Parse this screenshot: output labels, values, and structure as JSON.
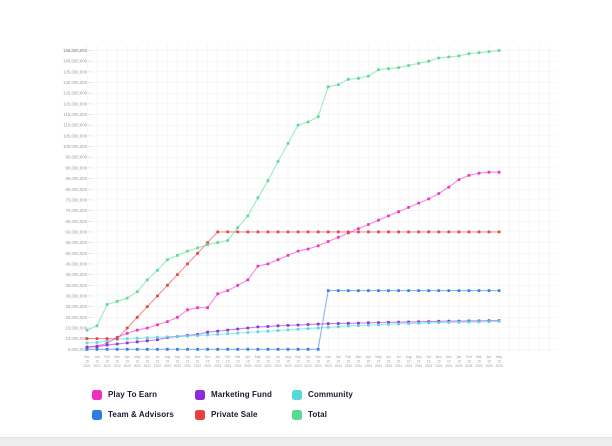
{
  "chart_data": {
    "type": "line",
    "title": "",
    "grid": true,
    "legend_position": "bottom",
    "x_axis": {
      "unit": "month",
      "labels": [
        "Dec 15 2021",
        "Jan 15 2022",
        "Feb 15 2022",
        "Mar 15 2022",
        "Apr 15 2022",
        "May 15 2022",
        "Jun 15 2022",
        "Jul 15 2022",
        "Aug 15 2022",
        "Sep 15 2022",
        "Oct 15 2022",
        "Nov 15 2022",
        "Dec 15 2022",
        "Jan 15 2023",
        "Feb 15 2023",
        "Mar 15 2023",
        "Apr 15 2023",
        "May 15 2023",
        "Jun 15 2023",
        "Jul 15 2023",
        "Aug 15 2023",
        "Sep 15 2023",
        "Oct 15 2023",
        "Nov 15 2023",
        "Dec 15 2023",
        "Jan 15 2024",
        "Feb 15 2024",
        "Mar 15 2024",
        "Apr 15 2024",
        "May 15 2024",
        "Jun 15 2024",
        "Jul 15 2024",
        "Aug 15 2024",
        "Sep 15 2024",
        "Oct 15 2024",
        "Nov 15 2024",
        "Dec 15 2024",
        "Jan 15 2025",
        "Feb 15 2025",
        "Mar 15 2025",
        "Apr 15 2025",
        "May 15 2025"
      ]
    },
    "y_axis": {
      "tick_min": 5000000,
      "tick_max": 145000000,
      "tick_step": 5000000,
      "range": [
        0,
        145000000
      ]
    },
    "series": [
      {
        "name": "Play To Earn",
        "color": "#F02EC0",
        "values": [
          6000000,
          6500000,
          7800000,
          10600000,
          12500000,
          14000000,
          15000000,
          16500000,
          18000000,
          20000000,
          23500000,
          24500000,
          24500000,
          31000000,
          32500000,
          35000000,
          37500000,
          44000000,
          45000000,
          47000000,
          49000000,
          51000000,
          52000000,
          53500000,
          55500000,
          57500000,
          59500000,
          61500000,
          63500000,
          65500000,
          67500000,
          69500000,
          71500000,
          73500000,
          75500000,
          78000000,
          81000000,
          84500000,
          86500000,
          87500000,
          88000000,
          88000000
        ]
      },
      {
        "name": "Marketing Fund",
        "color": "#8C2BD9",
        "values": [
          6000000,
          6200000,
          7000000,
          7500000,
          8000000,
          8500000,
          9000000,
          9500000,
          10500000,
          11000000,
          11500000,
          12000000,
          13000000,
          13500000,
          14000000,
          14500000,
          15000000,
          15500000,
          15700000,
          16000000,
          16200000,
          16400000,
          16600000,
          16800000,
          17000000,
          17100000,
          17200000,
          17300000,
          17400000,
          17500000,
          17600000,
          17700000,
          17800000,
          17900000,
          18000000,
          18100000,
          18200000,
          18200000,
          18300000,
          18300000,
          18400000,
          18400000
        ]
      },
      {
        "name": "Community",
        "color": "#57D7DC",
        "values": [
          8000000,
          8200000,
          9000000,
          9700000,
          10000000,
          10200000,
          10400000,
          10600000,
          10800000,
          11000000,
          11200000,
          11400000,
          11700000,
          12000000,
          12300000,
          12600000,
          12900000,
          13200000,
          13500000,
          13800000,
          14100000,
          14400000,
          14700000,
          15000000,
          15300000,
          15600000,
          15900000,
          16100000,
          16300000,
          16500000,
          16700000,
          16900000,
          17100000,
          17200000,
          17400000,
          17500000,
          17600000,
          17700000,
          17800000,
          17900000,
          18000000,
          18100000
        ]
      },
      {
        "name": "Team & Advisors",
        "color": "#2E7CE6",
        "values": [
          5000000,
          5000000,
          5000000,
          5000000,
          5000000,
          5000000,
          5000000,
          5000000,
          5000000,
          5000000,
          5000000,
          5000000,
          5000000,
          5000000,
          5000000,
          5000000,
          5000000,
          5000000,
          5000000,
          5000000,
          5000000,
          5000000,
          5000000,
          5000000,
          32500000,
          32500000,
          32500000,
          32500000,
          32500000,
          32500000,
          32500000,
          32500000,
          32500000,
          32500000,
          32500000,
          32500000,
          32500000,
          32500000,
          32500000,
          32500000,
          32500000,
          32500000
        ]
      },
      {
        "name": "Private Sale",
        "color": "#E8403F",
        "values": [
          10000000,
          10000000,
          10000000,
          10000000,
          15000000,
          20000000,
          25000000,
          30000000,
          35000000,
          40000000,
          45000000,
          50000000,
          55000000,
          60000000,
          60000000,
          60000000,
          60000000,
          60000000,
          60000000,
          60000000,
          60000000,
          60000000,
          60000000,
          60000000,
          60000000,
          60000000,
          60000000,
          60000000,
          60000000,
          60000000,
          60000000,
          60000000,
          60000000,
          60000000,
          60000000,
          60000000,
          60000000,
          60000000,
          60000000,
          60000000,
          60000000,
          60000000
        ]
      },
      {
        "name": "Total",
        "color": "#58D993",
        "values": [
          14000000,
          16000000,
          26000000,
          27500000,
          29000000,
          32000000,
          37500000,
          42000000,
          47000000,
          49000000,
          51000000,
          52500000,
          54000000,
          55000000,
          56000000,
          62000000,
          67500000,
          76000000,
          84000000,
          93000000,
          101500000,
          110000000,
          111500000,
          114000000,
          128000000,
          129000000,
          131500000,
          132000000,
          133000000,
          136000000,
          136500000,
          137000000,
          138000000,
          139000000,
          140000000,
          141500000,
          142000000,
          142500000,
          143500000,
          144000000,
          144500000,
          145000000
        ]
      }
    ]
  }
}
